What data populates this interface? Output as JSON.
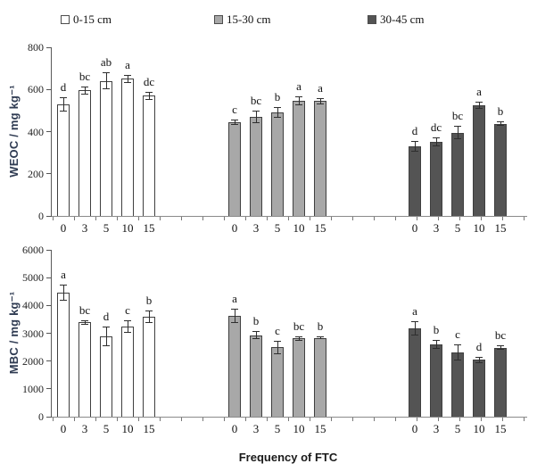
{
  "legend": {
    "items": [
      {
        "label": "0-15 cm",
        "color": "#ffffff"
      },
      {
        "label": "15-30 cm",
        "color": "#a8a8a8"
      },
      {
        "label": "30-45 cm",
        "color": "#545454"
      }
    ]
  },
  "xlabel": "Frequency of FTC",
  "chart_data": [
    {
      "type": "bar",
      "title": "WEOC panel",
      "ylabel": "WEOC / mg kg⁻¹",
      "ylim": [
        0,
        800
      ],
      "yticks": [
        0,
        200,
        400,
        600,
        800
      ],
      "grid": false,
      "legend_position": "top",
      "categories": [
        "0",
        "3",
        "5",
        "10",
        "15"
      ],
      "series": [
        {
          "name": "0-15 cm",
          "color": "#ffffff",
          "values": [
            530,
            595,
            640,
            650,
            570
          ],
          "errors": [
            35,
            20,
            40,
            20,
            20
          ],
          "letters": [
            "d",
            "bc",
            "ab",
            "a",
            "dc"
          ]
        },
        {
          "name": "15-30 cm",
          "color": "#a8a8a8",
          "values": [
            445,
            470,
            490,
            545,
            545
          ],
          "errors": [
            12,
            30,
            25,
            22,
            15
          ],
          "letters": [
            "c",
            "bc",
            "b",
            "a",
            "a"
          ]
        },
        {
          "name": "30-45 cm",
          "color": "#545454",
          "values": [
            330,
            352,
            395,
            525,
            437
          ],
          "errors": [
            25,
            22,
            32,
            18,
            10
          ],
          "letters": [
            "d",
            "dc",
            "bc",
            "a",
            "b"
          ]
        }
      ]
    },
    {
      "type": "bar",
      "title": "MBC panel",
      "ylabel": "MBC / mg kg⁻¹",
      "ylim": [
        0,
        6000
      ],
      "yticks": [
        0,
        1000,
        2000,
        3000,
        4000,
        5000,
        6000
      ],
      "grid": false,
      "legend_position": "top",
      "categories": [
        "0",
        "3",
        "5",
        "10",
        "15"
      ],
      "series": [
        {
          "name": "0-15 cm",
          "color": "#ffffff",
          "values": [
            4450,
            3400,
            2880,
            3250,
            3600
          ],
          "errors": [
            290,
            80,
            360,
            220,
            230
          ],
          "letters": [
            "a",
            "bc",
            "d",
            "c",
            "b"
          ]
        },
        {
          "name": "15-30 cm",
          "color": "#a8a8a8",
          "values": [
            3620,
            2930,
            2500,
            2810,
            2840
          ],
          "errors": [
            260,
            150,
            240,
            90,
            40
          ],
          "letters": [
            "a",
            "b",
            "c",
            "bc",
            "b"
          ]
        },
        {
          "name": "30-45 cm",
          "color": "#545454",
          "values": [
            3180,
            2600,
            2320,
            2050,
            2480
          ],
          "errors": [
            250,
            160,
            290,
            110,
            80
          ],
          "letters": [
            "a",
            "b",
            "c",
            "d",
            "bc"
          ]
        }
      ]
    }
  ]
}
